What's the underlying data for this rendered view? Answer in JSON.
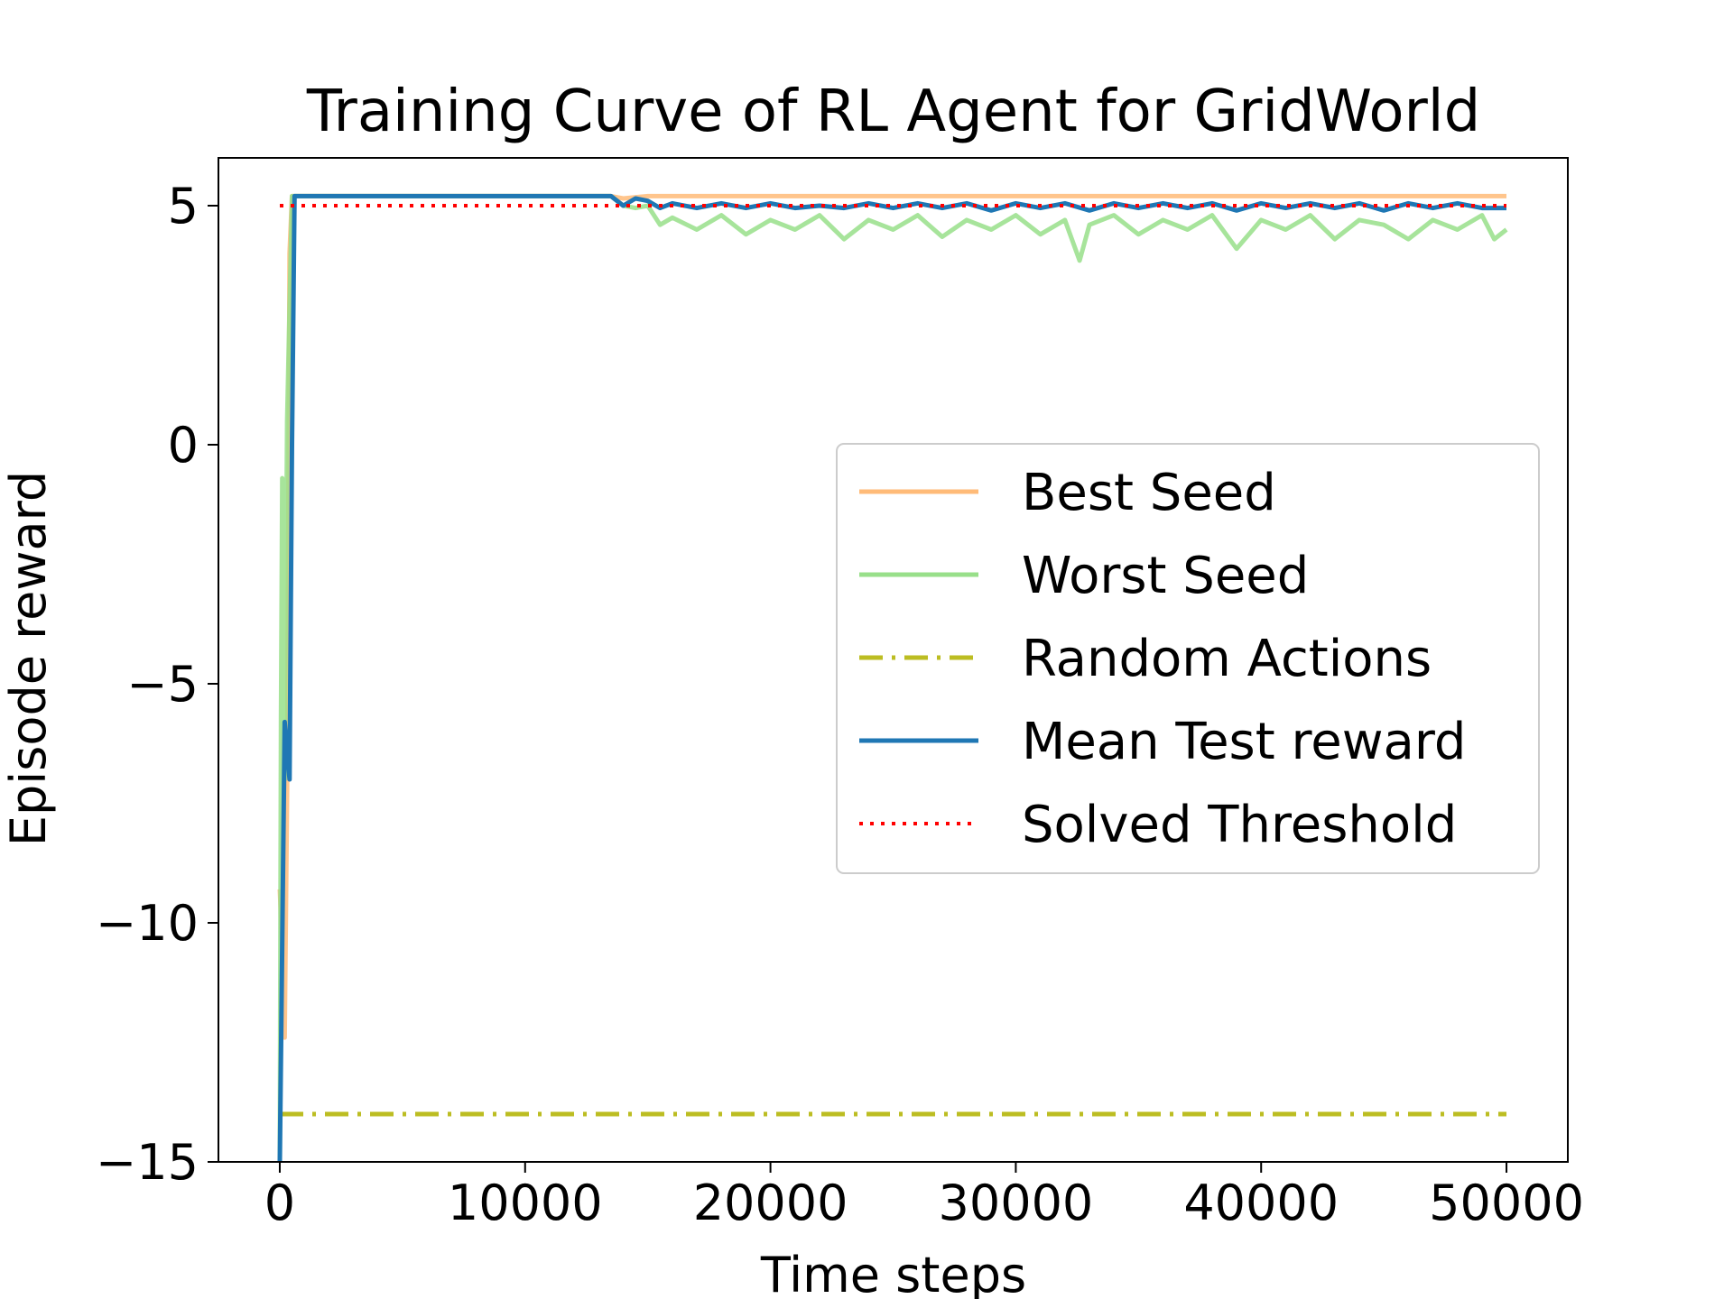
{
  "chart_data": {
    "type": "line",
    "title": "Training Curve of RL Agent for GridWorld",
    "xlabel": "Time steps",
    "ylabel": "Episode reward",
    "xlim": [
      -2500,
      52500
    ],
    "ylim": [
      -15,
      6
    ],
    "xticks": [
      0,
      10000,
      20000,
      30000,
      40000,
      50000
    ],
    "yticks": [
      5,
      0,
      -5,
      -10,
      -15
    ],
    "xtick_labels": [
      "0",
      "10000",
      "20000",
      "30000",
      "40000",
      "50000"
    ],
    "ytick_labels": [
      "5",
      "0",
      "−5",
      "−10",
      "−15"
    ],
    "grid": false,
    "legend_position": "right",
    "series": [
      {
        "name": "Best Seed",
        "color": "#ffbb78",
        "style": "solid",
        "points": [
          [
            0,
            -9.3
          ],
          [
            100,
            -10.5
          ],
          [
            200,
            -12.4
          ],
          [
            300,
            -7.2
          ],
          [
            400,
            4.0
          ],
          [
            500,
            5.2
          ],
          [
            13500,
            5.2
          ],
          [
            14000,
            5.15
          ],
          [
            15000,
            5.2
          ],
          [
            20000,
            5.2
          ],
          [
            25000,
            5.2
          ],
          [
            30000,
            5.2
          ],
          [
            35000,
            5.2
          ],
          [
            40000,
            5.2
          ],
          [
            45000,
            5.2
          ],
          [
            50000,
            5.2
          ]
        ]
      },
      {
        "name": "Worst Seed",
        "color": "#98df8a",
        "style": "solid",
        "points": [
          [
            0,
            -15
          ],
          [
            50,
            -5.7
          ],
          [
            100,
            -0.7
          ],
          [
            200,
            -7.0
          ],
          [
            300,
            0.5
          ],
          [
            500,
            5.2
          ],
          [
            13500,
            5.2
          ],
          [
            14000,
            5.0
          ],
          [
            14500,
            4.95
          ],
          [
            15000,
            5.0
          ],
          [
            15500,
            4.6
          ],
          [
            16000,
            4.75
          ],
          [
            17000,
            4.5
          ],
          [
            18000,
            4.8
          ],
          [
            19000,
            4.4
          ],
          [
            20000,
            4.7
          ],
          [
            21000,
            4.5
          ],
          [
            22000,
            4.8
          ],
          [
            23000,
            4.3
          ],
          [
            24000,
            4.7
          ],
          [
            25000,
            4.5
          ],
          [
            26000,
            4.8
          ],
          [
            27000,
            4.35
          ],
          [
            28000,
            4.7
          ],
          [
            29000,
            4.5
          ],
          [
            30000,
            4.8
          ],
          [
            31000,
            4.4
          ],
          [
            32000,
            4.7
          ],
          [
            32600,
            3.85
          ],
          [
            33000,
            4.6
          ],
          [
            34000,
            4.8
          ],
          [
            35000,
            4.4
          ],
          [
            36000,
            4.7
          ],
          [
            37000,
            4.5
          ],
          [
            38000,
            4.8
          ],
          [
            39000,
            4.1
          ],
          [
            40000,
            4.7
          ],
          [
            41000,
            4.5
          ],
          [
            42000,
            4.8
          ],
          [
            43000,
            4.3
          ],
          [
            44000,
            4.7
          ],
          [
            45000,
            4.6
          ],
          [
            46000,
            4.3
          ],
          [
            47000,
            4.7
          ],
          [
            48000,
            4.5
          ],
          [
            49000,
            4.8
          ],
          [
            49500,
            4.3
          ],
          [
            50000,
            4.5
          ]
        ]
      },
      {
        "name": "Random Actions",
        "color": "#bcbd22",
        "style": "dashdot",
        "points": [
          [
            0,
            -14.0
          ],
          [
            50000,
            -14.0
          ]
        ]
      },
      {
        "name": "Mean Test reward",
        "color": "#1f77b4",
        "style": "solid",
        "points": [
          [
            0,
            -15
          ],
          [
            200,
            -5.8
          ],
          [
            400,
            -7.0
          ],
          [
            500,
            0.0
          ],
          [
            600,
            5.2
          ],
          [
            13500,
            5.2
          ],
          [
            14000,
            5.0
          ],
          [
            14500,
            5.15
          ],
          [
            15000,
            5.1
          ],
          [
            15500,
            4.95
          ],
          [
            16000,
            5.05
          ],
          [
            17000,
            4.95
          ],
          [
            18000,
            5.05
          ],
          [
            19000,
            4.95
          ],
          [
            20000,
            5.05
          ],
          [
            21000,
            4.95
          ],
          [
            22000,
            5.0
          ],
          [
            23000,
            4.95
          ],
          [
            24000,
            5.05
          ],
          [
            25000,
            4.95
          ],
          [
            26000,
            5.05
          ],
          [
            27000,
            4.95
          ],
          [
            28000,
            5.05
          ],
          [
            29000,
            4.9
          ],
          [
            30000,
            5.05
          ],
          [
            31000,
            4.95
          ],
          [
            32000,
            5.05
          ],
          [
            33000,
            4.9
          ],
          [
            34000,
            5.05
          ],
          [
            35000,
            4.95
          ],
          [
            36000,
            5.05
          ],
          [
            37000,
            4.95
          ],
          [
            38000,
            5.05
          ],
          [
            39000,
            4.9
          ],
          [
            40000,
            5.05
          ],
          [
            41000,
            4.95
          ],
          [
            42000,
            5.05
          ],
          [
            43000,
            4.95
          ],
          [
            44000,
            5.05
          ],
          [
            45000,
            4.9
          ],
          [
            46000,
            5.05
          ],
          [
            47000,
            4.95
          ],
          [
            48000,
            5.05
          ],
          [
            49000,
            4.95
          ],
          [
            50000,
            4.95
          ]
        ]
      },
      {
        "name": "Solved Threshold",
        "color": "#ff0000",
        "style": "dotted",
        "points": [
          [
            0,
            5.0
          ],
          [
            50000,
            5.0
          ]
        ]
      }
    ]
  }
}
